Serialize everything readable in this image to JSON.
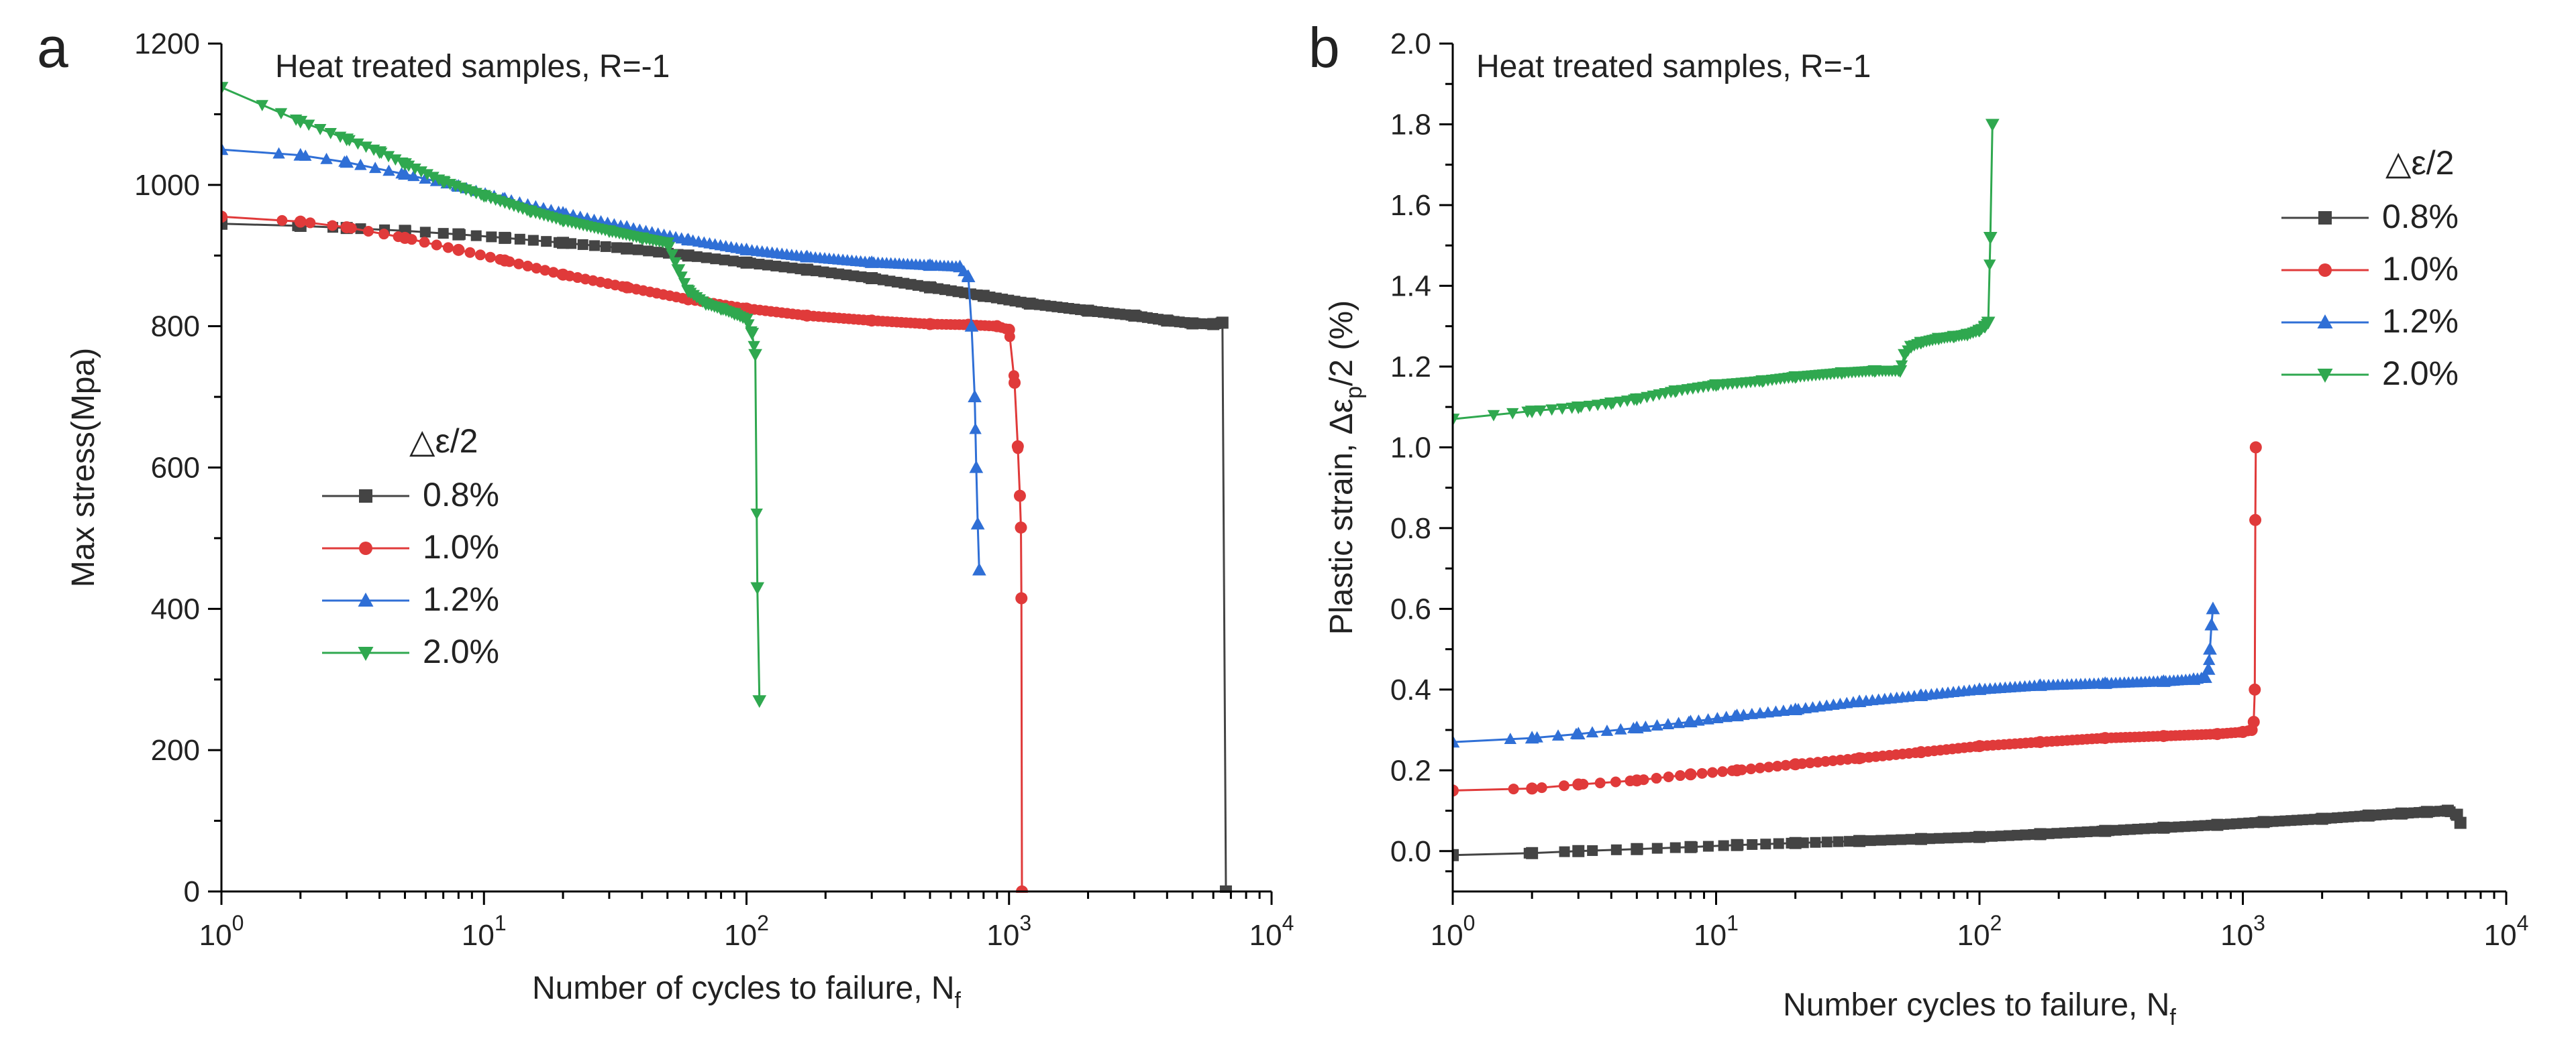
{
  "chart_data": [
    {
      "panel": "a",
      "type": "scatter",
      "annotation": "Heat treated samples, R=-1",
      "xlabel": "Number of cycles to failure, N",
      "xlabel_sub": "f",
      "ylabel": "Max stress(Mpa)",
      "xscale": "log",
      "xlim": [
        1,
        10000
      ],
      "ylim": [
        0,
        1200
      ],
      "xticks": [
        1,
        10,
        100,
        1000,
        10000
      ],
      "xtick_labels": [
        [
          "10",
          "0"
        ],
        [
          "10",
          "1"
        ],
        [
          "10",
          "2"
        ],
        [
          "10",
          "3"
        ],
        [
          "10",
          "4"
        ]
      ],
      "yticks": [
        0,
        200,
        400,
        600,
        800,
        1000,
        1200
      ],
      "ytick_labels": [
        "0",
        "200",
        "400",
        "600",
        "800",
        "1000",
        "1200"
      ],
      "legend_title": "△ε/2",
      "legend_position": "center-left",
      "series": [
        {
          "name": "0.8%",
          "color": "#444444",
          "marker": "square",
          "x": [
            1,
            2,
            3,
            5,
            8,
            12,
            20,
            35,
            60,
            100,
            170,
            300,
            500,
            800,
            1200,
            2000,
            3000,
            4000,
            5000,
            6000,
            6500,
            6700
          ],
          "y": [
            945,
            942,
            939,
            935,
            930,
            925,
            918,
            910,
            900,
            890,
            880,
            868,
            855,
            843,
            832,
            822,
            815,
            808,
            804,
            803,
            805,
            0
          ]
        },
        {
          "name": "1.0%",
          "color": "#e03a3a",
          "marker": "circle",
          "x": [
            1,
            2,
            3,
            5,
            8,
            12,
            20,
            35,
            60,
            100,
            170,
            300,
            500,
            700,
            900,
            1000,
            1050,
            1080,
            1100,
            1110,
            1115,
            1120
          ],
          "y": [
            955,
            948,
            940,
            925,
            908,
            893,
            873,
            855,
            838,
            825,
            815,
            808,
            803,
            802,
            800,
            795,
            720,
            630,
            560,
            515,
            415,
            0
          ]
        },
        {
          "name": "1.2%",
          "color": "#2f6fd6",
          "marker": "triangle-up",
          "x": [
            1,
            2,
            3,
            5,
            8,
            12,
            20,
            35,
            60,
            100,
            170,
            300,
            500,
            650,
            700,
            720,
            740,
            750,
            760,
            770
          ],
          "y": [
            1050,
            1042,
            1032,
            1015,
            998,
            980,
            960,
            940,
            922,
            908,
            898,
            890,
            886,
            884,
            870,
            800,
            700,
            600,
            520,
            455
          ]
        },
        {
          "name": "2.0%",
          "color": "#2fa84f",
          "marker": "triangle-down",
          "x": [
            1,
            2,
            3,
            4,
            5,
            7,
            10,
            15,
            20,
            30,
            40,
            50,
            55,
            60,
            70,
            80,
            90,
            100,
            105,
            108,
            110,
            112
          ],
          "y": [
            1138,
            1090,
            1065,
            1047,
            1030,
            1005,
            985,
            963,
            950,
            935,
            925,
            918,
            880,
            850,
            832,
            825,
            818,
            810,
            790,
            760,
            430,
            270
          ]
        }
      ]
    },
    {
      "panel": "b",
      "type": "scatter",
      "annotation": "Heat treated samples, R=-1",
      "xlabel": "Number cycles to failure, N",
      "xlabel_sub": "f",
      "ylabel": "Plastic strain, Δε",
      "ylabel_sub": "p",
      "ylabel_tail": "/2 (%)",
      "xscale": "log",
      "xlim": [
        1,
        10000
      ],
      "ylim": [
        -0.1,
        2.0
      ],
      "xticks": [
        1,
        10,
        100,
        1000,
        10000
      ],
      "xtick_labels": [
        [
          "10",
          "0"
        ],
        [
          "10",
          "1"
        ],
        [
          "10",
          "2"
        ],
        [
          "10",
          "3"
        ],
        [
          "10",
          "4"
        ]
      ],
      "yticks": [
        0.0,
        0.2,
        0.4,
        0.6,
        0.8,
        1.0,
        1.2,
        1.4,
        1.6,
        1.8,
        2.0
      ],
      "ytick_labels": [
        "0.0",
        "0.2",
        "0.4",
        "0.6",
        "0.8",
        "1.0",
        "1.2",
        "1.4",
        "1.6",
        "1.8",
        "2.0"
      ],
      "legend_title": "△ε/2",
      "legend_position": "top-right",
      "series": [
        {
          "name": "0.8%",
          "color": "#444444",
          "marker": "square",
          "x": [
            1,
            2,
            3,
            5,
            8,
            12,
            20,
            35,
            60,
            100,
            170,
            300,
            500,
            800,
            1200,
            2000,
            3000,
            4000,
            5000,
            6000,
            6500,
            6700
          ],
          "y": [
            -0.01,
            -0.005,
            0.0,
            0.005,
            0.01,
            0.015,
            0.02,
            0.025,
            0.03,
            0.035,
            0.042,
            0.05,
            0.058,
            0.065,
            0.072,
            0.08,
            0.088,
            0.093,
            0.097,
            0.1,
            0.09,
            0.07
          ]
        },
        {
          "name": "1.0%",
          "color": "#e03a3a",
          "marker": "circle",
          "x": [
            1,
            2,
            3,
            5,
            8,
            12,
            20,
            35,
            60,
            100,
            170,
            300,
            500,
            800,
            1000,
            1080,
            1100,
            1110,
            1115,
            1120
          ],
          "y": [
            0.15,
            0.155,
            0.165,
            0.175,
            0.19,
            0.2,
            0.215,
            0.23,
            0.245,
            0.26,
            0.27,
            0.28,
            0.285,
            0.29,
            0.295,
            0.3,
            0.32,
            0.4,
            0.82,
            1.0
          ]
        },
        {
          "name": "1.2%",
          "color": "#2f6fd6",
          "marker": "triangle-up",
          "x": [
            1,
            2,
            3,
            5,
            8,
            12,
            20,
            35,
            60,
            100,
            170,
            300,
            500,
            650,
            720,
            740,
            750,
            760,
            770
          ],
          "y": [
            0.27,
            0.28,
            0.29,
            0.305,
            0.32,
            0.335,
            0.35,
            0.37,
            0.385,
            0.4,
            0.41,
            0.415,
            0.42,
            0.425,
            0.43,
            0.45,
            0.5,
            0.56,
            0.6
          ]
        },
        {
          "name": "2.0%",
          "color": "#2fa84f",
          "marker": "triangle-down",
          "x": [
            1,
            2,
            3,
            4,
            5,
            7,
            10,
            15,
            20,
            30,
            40,
            50,
            52,
            55,
            60,
            70,
            80,
            90,
            100,
            105,
            108,
            110,
            112
          ],
          "y": [
            1.07,
            1.09,
            1.1,
            1.11,
            1.12,
            1.14,
            1.155,
            1.165,
            1.175,
            1.185,
            1.19,
            1.19,
            1.23,
            1.25,
            1.26,
            1.27,
            1.275,
            1.28,
            1.29,
            1.3,
            1.31,
            1.52,
            1.8
          ]
        }
      ]
    }
  ]
}
